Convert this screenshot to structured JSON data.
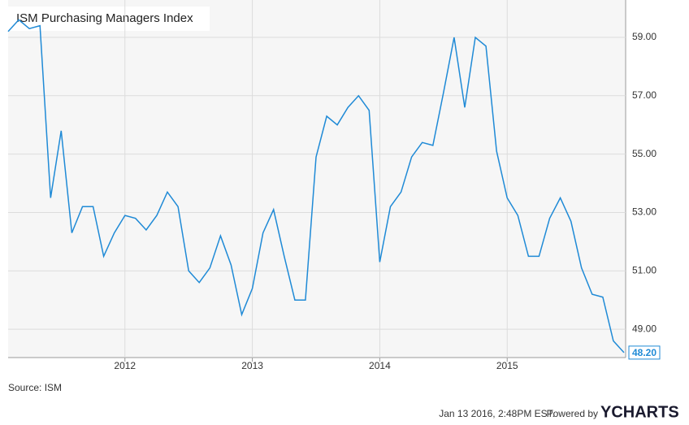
{
  "chart_data": {
    "type": "line",
    "title": "ISM Purchasing Managers Index",
    "source": "Source: ISM",
    "timestamp": "Jan 13 2016, 2:48PM EST.",
    "powered_by": "Powered by",
    "brand": "YCHARTS",
    "categories": [
      null,
      null,
      null,
      null,
      null,
      null,
      null,
      null,
      null,
      null,
      null,
      "2012",
      null,
      null,
      null,
      null,
      null,
      null,
      null,
      null,
      null,
      null,
      null,
      "2013",
      null,
      null,
      null,
      null,
      null,
      null,
      null,
      null,
      null,
      null,
      null,
      "2014",
      null,
      null,
      null,
      null,
      null,
      null,
      null,
      null,
      null,
      null,
      null,
      "2015",
      null,
      null,
      null,
      null,
      null,
      null,
      null,
      null,
      null,
      null,
      null
    ],
    "series": [
      {
        "name": "ISM Purchasing Managers Index",
        "color": "#1f8ad6",
        "values": [
          59.2,
          59.6,
          59.3,
          59.4,
          53.5,
          55.8,
          52.3,
          53.2,
          53.2,
          51.5,
          52.3,
          52.9,
          52.8,
          52.4,
          52.9,
          53.7,
          53.2,
          51.0,
          50.6,
          51.1,
          52.2,
          51.2,
          49.5,
          50.4,
          52.3,
          53.1,
          51.5,
          50.0,
          50.0,
          54.9,
          56.3,
          56.0,
          56.6,
          57.0,
          56.5,
          51.3,
          53.2,
          53.7,
          54.9,
          55.4,
          55.3,
          57.1,
          59.0,
          56.6,
          59.0,
          58.7,
          55.1,
          53.5,
          52.9,
          51.5,
          51.5,
          52.8,
          53.5,
          52.7,
          51.1,
          50.2,
          50.1,
          48.6,
          48.2
        ],
        "value_labels": [
          null,
          null,
          null,
          null,
          null,
          null,
          null,
          null,
          null,
          null,
          null,
          null,
          null,
          null,
          null,
          null,
          null,
          null,
          null,
          null,
          null,
          null,
          null,
          null,
          null,
          null,
          null,
          null,
          null,
          null,
          null,
          null,
          null,
          null,
          null,
          null,
          null,
          null,
          null,
          null,
          null,
          null,
          null,
          null,
          null,
          null,
          null,
          null,
          null,
          null,
          null,
          null,
          null,
          null,
          null,
          null,
          null,
          null,
          "48.20"
        ]
      }
    ],
    "ylim": [
      48.03,
      60.28
    ],
    "yticks": [
      {
        "value": 49,
        "label": "49.00"
      },
      {
        "value": 51,
        "label": "51.00"
      },
      {
        "value": 53,
        "label": "53.00"
      },
      {
        "value": 55,
        "label": "55.00"
      },
      {
        "value": 57,
        "label": "57.00"
      },
      {
        "value": 59,
        "label": "59.00"
      }
    ],
    "grid": true
  }
}
